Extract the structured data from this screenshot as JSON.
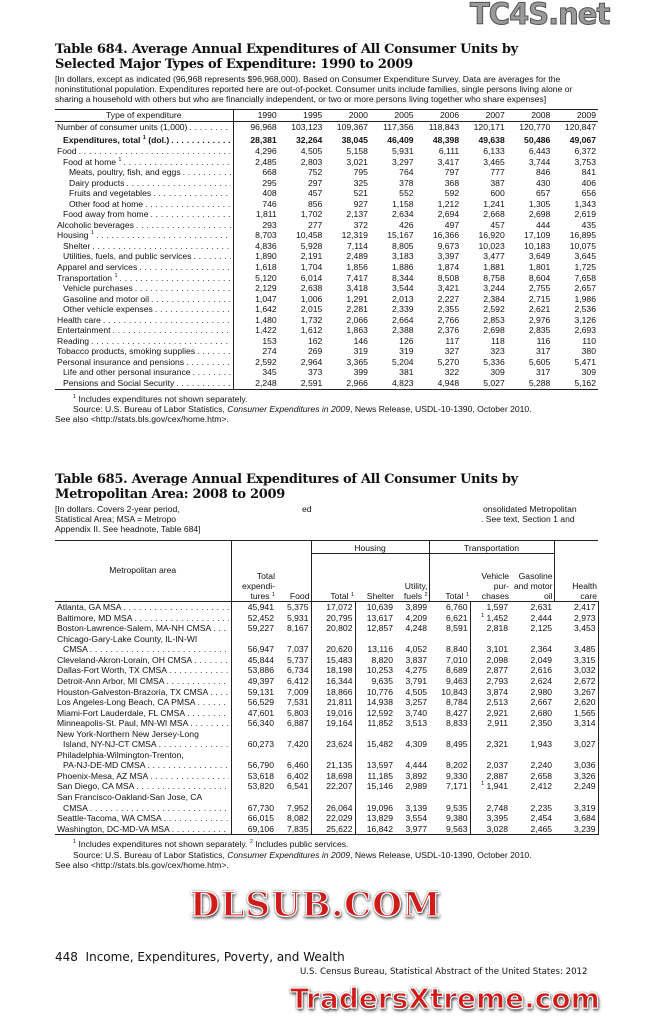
{
  "watermarks": {
    "top": "TC4S.net",
    "middle": "DLSUB.COM",
    "bottom": "TradersXtreme.com"
  },
  "table684": {
    "title_line1": "Table 684. Average Annual Expenditures of All Consumer Units by",
    "title_line2": "Selected Major Types of Expenditure: 1990 to 2009",
    "headnote": "[In dollars, except as indicated (96,968 represents $96,968,000). Based on Consumer Expenditure Survey. Data are averages for the noninstitutional population. Expenditures reported here are out-of-pocket. Consumer units include families, single persons living alone or sharing a household with others but who are financially independent, or two or more persons living together who share expenses]",
    "stub_header": "Type of expenditure",
    "years": [
      "1990",
      "1995",
      "2000",
      "2005",
      "2006",
      "2007",
      "2008",
      "2009"
    ],
    "rows": [
      {
        "label": "Number of consumer units (1,000)",
        "indent": 0,
        "values": [
          "96,968",
          "103,123",
          "109,367",
          "117,356",
          "118,843",
          "120,171",
          "120,770",
          "120,847"
        ]
      },
      {
        "label": "Expenditures, total",
        "sup": "1",
        "label_after": "(dol.)",
        "indent": 1,
        "bold": true,
        "values": [
          "28,381",
          "32,264",
          "38,045",
          "46,409",
          "48,398",
          "49,638",
          "50,486",
          "49,067"
        ]
      },
      {
        "label": "Food",
        "indent": 0,
        "values": [
          "4,296",
          "4,505",
          "5,158",
          "5,931",
          "6,111",
          "6,133",
          "6,443",
          "6,372"
        ]
      },
      {
        "label": "Food at home",
        "sup": "1",
        "indent": 1,
        "values": [
          "2,485",
          "2,803",
          "3,021",
          "3,297",
          "3,417",
          "3,465",
          "3,744",
          "3,753"
        ]
      },
      {
        "label": "Meats, poultry, fish, and eggs",
        "indent": 2,
        "values": [
          "668",
          "752",
          "795",
          "764",
          "797",
          "777",
          "846",
          "841"
        ]
      },
      {
        "label": "Dairy products",
        "indent": 2,
        "values": [
          "295",
          "297",
          "325",
          "378",
          "368",
          "387",
          "430",
          "406"
        ]
      },
      {
        "label": "Fruits and vegetables",
        "indent": 2,
        "values": [
          "408",
          "457",
          "521",
          "552",
          "592",
          "600",
          "657",
          "656"
        ]
      },
      {
        "label": "Other food at home",
        "indent": 2,
        "values": [
          "746",
          "856",
          "927",
          "1,158",
          "1,212",
          "1,241",
          "1,305",
          "1,343"
        ]
      },
      {
        "label": "Food away from home",
        "indent": 1,
        "values": [
          "1,811",
          "1,702",
          "2,137",
          "2,634",
          "2,694",
          "2,668",
          "2,698",
          "2,619"
        ]
      },
      {
        "label": "Alcoholic beverages",
        "indent": 0,
        "values": [
          "293",
          "277",
          "372",
          "426",
          "497",
          "457",
          "444",
          "435"
        ]
      },
      {
        "label": "Housing",
        "sup": "1",
        "indent": 0,
        "values": [
          "8,703",
          "10,458",
          "12,319",
          "15,167",
          "16,366",
          "16,920",
          "17,109",
          "16,895"
        ]
      },
      {
        "label": "Shelter",
        "indent": 1,
        "values": [
          "4,836",
          "5,928",
          "7,114",
          "8,805",
          "9,673",
          "10,023",
          "10,183",
          "10,075"
        ]
      },
      {
        "label": "Utilities, fuels, and public services",
        "indent": 1,
        "values": [
          "1,890",
          "2,191",
          "2,489",
          "3,183",
          "3,397",
          "3,477",
          "3,649",
          "3,645"
        ]
      },
      {
        "label": "Apparel and services",
        "indent": 0,
        "values": [
          "1,618",
          "1,704",
          "1,856",
          "1,886",
          "1,874",
          "1,881",
          "1,801",
          "1,725"
        ]
      },
      {
        "label": "Transportation",
        "sup": "1",
        "indent": 0,
        "values": [
          "5,120",
          "6,014",
          "7,417",
          "8,344",
          "8,508",
          "8,758",
          "8,604",
          "7,658"
        ]
      },
      {
        "label": "Vehicle purchases",
        "indent": 1,
        "values": [
          "2,129",
          "2,638",
          "3,418",
          "3,544",
          "3,421",
          "3,244",
          "2,755",
          "2,657"
        ]
      },
      {
        "label": "Gasoline and motor oil",
        "indent": 1,
        "values": [
          "1,047",
          "1,006",
          "1,291",
          "2,013",
          "2,227",
          "2,384",
          "2,715",
          "1,986"
        ]
      },
      {
        "label": "Other vehicle expenses",
        "indent": 1,
        "values": [
          "1,642",
          "2,015",
          "2,281",
          "2,339",
          "2,355",
          "2,592",
          "2,621",
          "2,536"
        ]
      },
      {
        "label": "Health care",
        "indent": 0,
        "values": [
          "1,480",
          "1,732",
          "2,066",
          "2,664",
          "2,766",
          "2,853",
          "2,976",
          "3,126"
        ]
      },
      {
        "label": "Entertainment",
        "indent": 0,
        "values": [
          "1,422",
          "1,612",
          "1,863",
          "2,388",
          "2,376",
          "2,698",
          "2,835",
          "2,693"
        ]
      },
      {
        "label": "Reading",
        "indent": 0,
        "values": [
          "153",
          "162",
          "146",
          "126",
          "117",
          "118",
          "116",
          "110"
        ]
      },
      {
        "label": "Tobacco products, smoking supplies",
        "indent": 0,
        "values": [
          "274",
          "269",
          "319",
          "319",
          "327",
          "323",
          "317",
          "380"
        ]
      },
      {
        "label": "Personal insurance and pensions",
        "indent": 0,
        "values": [
          "2,592",
          "2,964",
          "3,365",
          "5,204",
          "5,270",
          "5,336",
          "5,605",
          "5,471"
        ]
      },
      {
        "label": "Life and other personal insurance",
        "indent": 1,
        "values": [
          "345",
          "373",
          "399",
          "381",
          "322",
          "309",
          "317",
          "309"
        ]
      },
      {
        "label": "Pensions and Social Security",
        "indent": 1,
        "values": [
          "2,248",
          "2,591",
          "2,966",
          "4,823",
          "4,948",
          "5,027",
          "5,288",
          "5,162"
        ]
      }
    ],
    "footnote1": "Includes expenditures not shown separately.",
    "source_prefix": "Source: U.S. Bureau of Labor Statistics, ",
    "source_italic": "Consumer Expenditures in 2009",
    "source_suffix": ", News Release, USDL-10-1390, October 2010.",
    "see_also": "See also <http://stats.bls.gov/cex/home.htm>."
  },
  "table685": {
    "title_line1": "Table 685. Average Annual Expenditures of All Consumer Units by",
    "title_line2": "Metropolitan Area: 2008 to 2009",
    "headnote_line1_left": "[In dollars. Covers 2-year period,",
    "headnote_line1_mid": "ed",
    "headnote_line1_right": "onsolidated Metropolitan",
    "headnote_line2_left": "Statistical Area; MSA = Metropo",
    "headnote_line2_right": ". See text, Section 1 and",
    "headnote_line3": "Appendix II. See headnote, Table 684]",
    "stub_header": "Metropolitan area",
    "group_housing": "Housing",
    "group_transportation": "Transportation",
    "columns": [
      {
        "label": "Total expendi- tures",
        "sup": "1"
      },
      {
        "label": "Food"
      },
      {
        "label": "Total",
        "sup": "1"
      },
      {
        "label": "Shelter"
      },
      {
        "label": "Utility, fuels",
        "sup": "2"
      },
      {
        "label": "Total",
        "sup": "1"
      },
      {
        "label": "Vehicle pur- chases"
      },
      {
        "label": "Gasoline and motor oil"
      },
      {
        "label": "Health care"
      }
    ],
    "rows": [
      {
        "label": "Atlanta, GA MSA",
        "values": [
          "45,941",
          "5,375",
          "17,072",
          "10,639",
          "3,899",
          "6,760",
          "1,597",
          "2,631",
          "2,417"
        ]
      },
      {
        "label": "Baltimore, MD MSA",
        "values": [
          "52,452",
          "5,931",
          "20,795",
          "13,617",
          "4,209",
          "6,621",
          {
            "sup": "1",
            "v": "1,452"
          },
          "2,444",
          "2,973"
        ]
      },
      {
        "label": "Boston-Lawrence-Salem, MA-NH CMSA",
        "values": [
          "59,227",
          "8,167",
          "20,802",
          "12,857",
          "4,248",
          "8,591",
          "2,818",
          "2,125",
          "3,453"
        ]
      },
      {
        "label": "Chicago-Gary-Lake County, IL-IN-WI",
        "label2": "CMSA",
        "values": [
          "56,947",
          "7,037",
          "20,620",
          "13,116",
          "4,052",
          "8,840",
          "3,101",
          "2,364",
          "3,485"
        ]
      },
      {
        "label": "Cleveland-Akron-Lorain, OH CMSA",
        "values": [
          "45,844",
          "5,737",
          "15,483",
          "8,820",
          "3,837",
          "7,010",
          "2,098",
          "2,049",
          "3,315"
        ]
      },
      {
        "label": "Dallas-Fort Worth, TX CMSA",
        "values": [
          "53,886",
          "6,734",
          "18,198",
          "10,253",
          "4,275",
          "8,689",
          "2,877",
          "2,616",
          "3,032"
        ]
      },
      {
        "label": "Detroit-Ann Arbor, MI CMSA",
        "values": [
          "49,397",
          "6,412",
          "16,344",
          "9,635",
          "3,791",
          "9,463",
          "2,793",
          "2,624",
          "2,672"
        ]
      },
      {
        "label": "Houston-Galveston-Brazoria, TX CMSA",
        "values": [
          "59,131",
          "7,009",
          "18,866",
          "10,776",
          "4,505",
          "10,843",
          "3,874",
          "2,980",
          "3,267"
        ]
      },
      {
        "label": "Los Angeles-Long Beach, CA PMSA",
        "values": [
          "56,529",
          "7,531",
          "21,811",
          "14,938",
          "3,257",
          "8,784",
          "2,513",
          "2,667",
          "2,620"
        ]
      },
      {
        "label": "Miami-Fort Lauderdale, FL CMSA",
        "values": [
          "47,601",
          "5,803",
          "19,016",
          "12,592",
          "3,740",
          "8,427",
          "2,921",
          "2,680",
          "1,565"
        ]
      },
      {
        "label": "Minneapolis-St. Paul, MN-WI MSA",
        "values": [
          "56,340",
          "6,887",
          "19,164",
          "11,852",
          "3,513",
          "8,833",
          "2,911",
          "2,350",
          "3,314"
        ]
      },
      {
        "label": "New York-Northern New Jersey-Long",
        "label2": "Island, NY-NJ-CT CMSA",
        "values": [
          "60,273",
          "7,420",
          "23,624",
          "15,482",
          "4,309",
          "8,495",
          "2,321",
          "1,943",
          "3,027"
        ]
      },
      {
        "label": "Philadelphia-Wilmington-Trenton,",
        "label2": "PA-NJ-DE-MD CMSA",
        "values": [
          "56,790",
          "6,460",
          "21,135",
          "13,597",
          "4,444",
          "8,202",
          "2,037",
          "2,240",
          "3,036"
        ]
      },
      {
        "label": "Phoenix-Mesa, AZ MSA",
        "values": [
          "53,618",
          "6,402",
          "18,698",
          "11,185",
          "3,892",
          "9,330",
          "2,887",
          "2,658",
          "3,326"
        ]
      },
      {
        "label": "San Diego, CA MSA",
        "values": [
          "53,820",
          "6,541",
          "22,207",
          "15,146",
          "2,989",
          "7,171",
          {
            "sup": "1",
            "v": "1,941"
          },
          "2,412",
          "2,249"
        ]
      },
      {
        "label": "San Francisco-Oakland-San Jose, CA",
        "label2": "CMSA",
        "values": [
          "67,730",
          "7,952",
          "26,064",
          "19,096",
          "3,139",
          "9,535",
          "2,748",
          "2,235",
          "3,319"
        ]
      },
      {
        "label": "Seattle-Tacoma, WA CMSA",
        "values": [
          "66,015",
          "8,082",
          "22,029",
          "13,829",
          "3,554",
          "9,380",
          "3,395",
          "2,454",
          "3,684"
        ]
      },
      {
        "label": "Washington, DC-MD-VA MSA",
        "values": [
          "69,106",
          "7,835",
          "25,622",
          "16,842",
          "3,977",
          "9,563",
          "3,028",
          "2,465",
          "3,239"
        ]
      }
    ],
    "footnote1": "Includes expenditures not shown separately.",
    "footnote2": "Includes public services.",
    "source_prefix": "Source: U.S. Bureau of Labor Statistics, ",
    "source_italic": "Consumer Expenditures in 2009",
    "source_suffix": ", News Release, USDL-10-1390, October 2010.",
    "see_also": "See also <http://stats.bls.gov/cex/home.htm>."
  },
  "footer": {
    "page_number": "448",
    "section": "Income, Expenditures, Poverty, and Wealth",
    "publication": "U.S. Census Bureau, Statistical Abstract of the United States: 2012"
  }
}
